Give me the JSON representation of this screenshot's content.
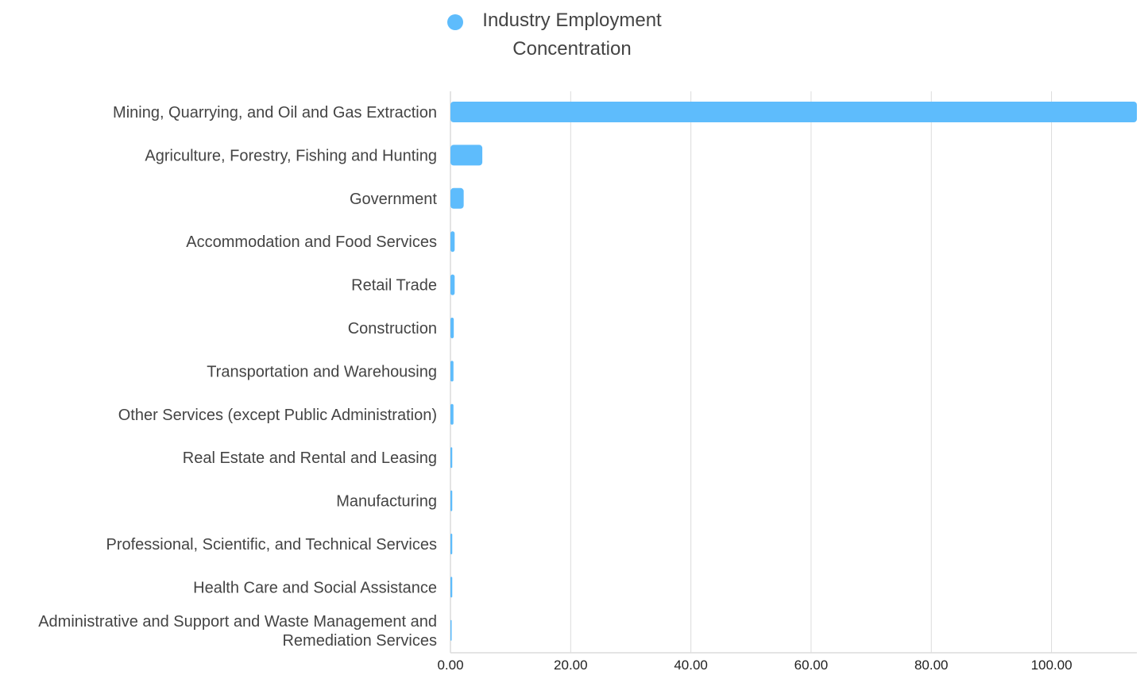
{
  "legend": {
    "label_line1": "Industry Employment",
    "label_line2": "Concentration"
  },
  "colors": {
    "bar": "#5ebcfc",
    "grid": "#dcdcdc",
    "axis_text": "#222222",
    "label_text": "#444444"
  },
  "chart_data": {
    "type": "bar",
    "orientation": "horizontal",
    "categories": [
      [
        "Mining, Quarrying, and Oil and Gas Extraction"
      ],
      [
        "Agriculture, Forestry, Fishing and Hunting"
      ],
      [
        "Government"
      ],
      [
        "Accommodation and Food Services"
      ],
      [
        "Retail Trade"
      ],
      [
        "Construction"
      ],
      [
        "Transportation and Warehousing"
      ],
      [
        "Other Services (except Public Administration)"
      ],
      [
        "Real Estate and Rental and Leasing"
      ],
      [
        "Manufacturing"
      ],
      [
        "Professional, Scientific, and Technical Services"
      ],
      [
        "Health Care and Social Assistance"
      ],
      [
        "Administrative and Support and Waste Management and",
        "Remediation Services"
      ]
    ],
    "series": [
      {
        "name": "Industry Employment Concentration",
        "values": [
          114.2,
          5.3,
          2.2,
          0.7,
          0.7,
          0.55,
          0.5,
          0.5,
          0.3,
          0.3,
          0.3,
          0.3,
          0.1
        ]
      }
    ],
    "xlim": [
      0,
      114.2
    ],
    "xticks": [
      "0.00",
      "20.00",
      "40.00",
      "60.00",
      "80.00",
      "100.00"
    ],
    "xtick_values": [
      0,
      20,
      40,
      60,
      80,
      100
    ],
    "grid": true,
    "legend_position": "top-center"
  }
}
